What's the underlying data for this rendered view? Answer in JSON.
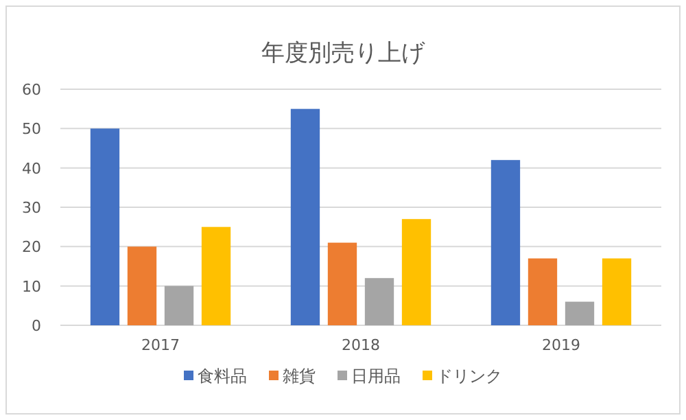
{
  "chart_data": {
    "type": "bar",
    "title": "年度別売り上げ",
    "categories": [
      "2017",
      "2018",
      "2019"
    ],
    "series": [
      {
        "name": "食料品",
        "color": "#4472c4",
        "values": [
          50,
          55,
          42
        ]
      },
      {
        "name": "雑貨",
        "color": "#ed7d31",
        "values": [
          20,
          21,
          17
        ]
      },
      {
        "name": "日用品",
        "color": "#a5a5a5",
        "values": [
          10,
          12,
          6
        ]
      },
      {
        "name": "ドリンク",
        "color": "#ffc000",
        "values": [
          25,
          27,
          17
        ]
      }
    ],
    "ylim": [
      0,
      60
    ],
    "yticks": [
      0,
      10,
      20,
      30,
      40,
      50,
      60
    ],
    "grid": "y",
    "legend": "bottom"
  }
}
